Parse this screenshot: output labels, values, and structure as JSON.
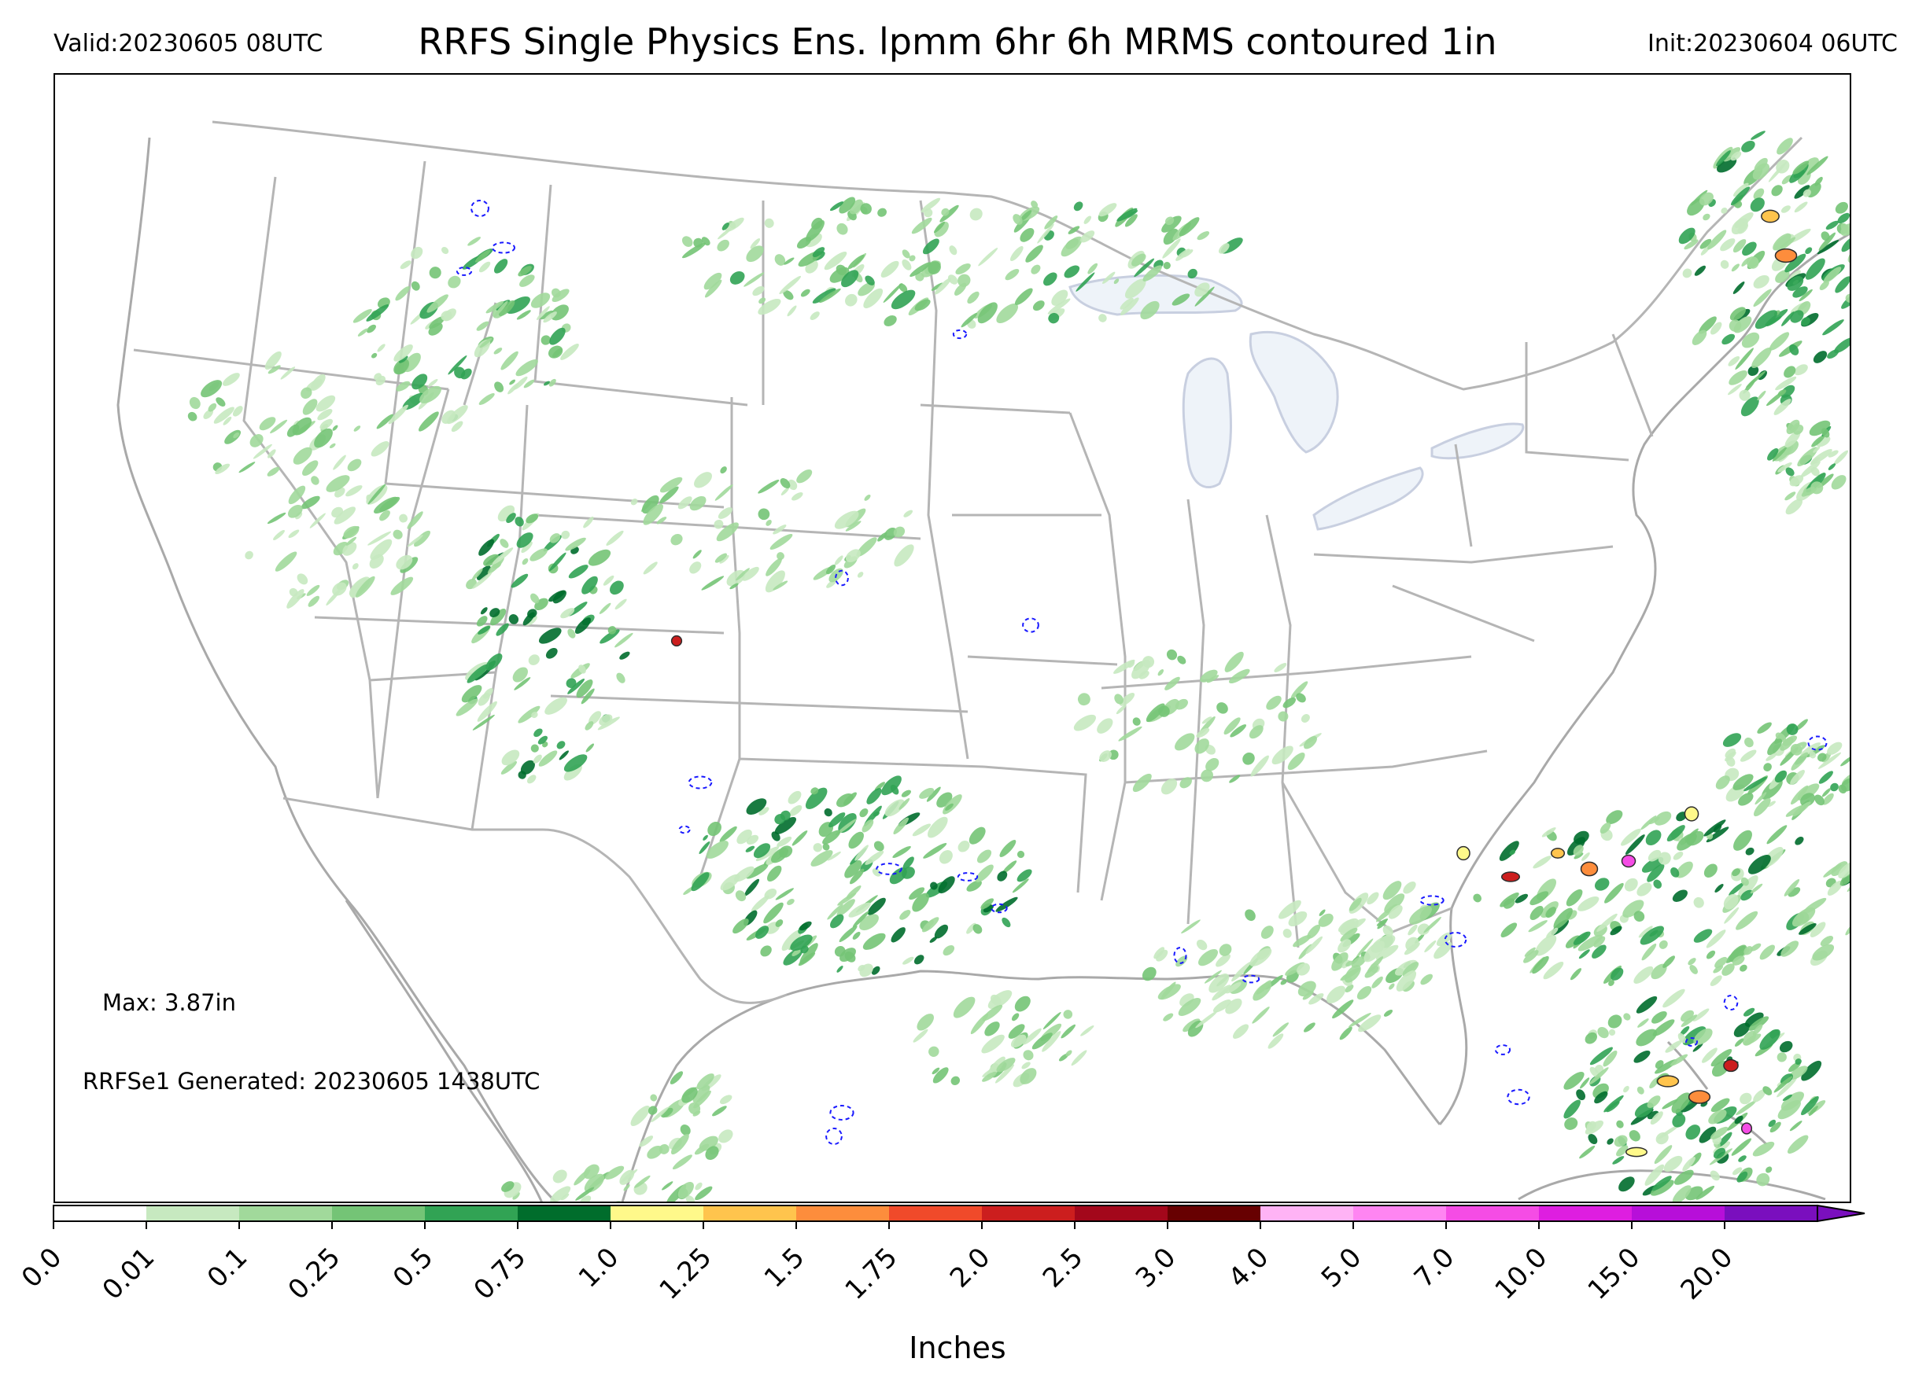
{
  "header": {
    "valid": "Valid:20230605 08UTC",
    "title": "RRFS Single Physics Ens. lpmm 6hr 6h MRMS contoured 1in",
    "init": "Init:20230604 06UTC"
  },
  "annotations": {
    "max": "Max: 3.87in",
    "generated": "RRFSe1 Generated: 20230605 1438UTC"
  },
  "colorbar": {
    "units": "Inches",
    "ticks": [
      "0.0",
      "0.01",
      "0.1",
      "0.25",
      "0.5",
      "0.75",
      "1.0",
      "1.25",
      "1.5",
      "1.75",
      "2.0",
      "2.5",
      "3.0",
      "4.0",
      "5.0",
      "7.0",
      "10.0",
      "15.0",
      "20.0"
    ],
    "colors": [
      "#ffffff",
      "#c7e9c0",
      "#a1d99b",
      "#74c476",
      "#31a354",
      "#006d2c",
      "#fff98a",
      "#ffc44d",
      "#fd8d3c",
      "#f04a2a",
      "#cc1e1e",
      "#a3071b",
      "#670001",
      "#ffb3f5",
      "#ff85f2",
      "#f54ce5",
      "#de1ee0",
      "#b70fd9",
      "#7a0fbe"
    ],
    "extend_color": "#7a0fbe"
  },
  "map": {
    "land_color": "#ffffff",
    "lake_color": "#eef3f9",
    "border_color": "#b5b5b5",
    "coast_color": "#a9a9a9",
    "precip_colors": [
      "#c7e9c0",
      "#a1d99b",
      "#74c476",
      "#31a354",
      "#006d2c"
    ],
    "heavy_colors": [
      "#fff98a",
      "#ffc44d",
      "#fd8d3c",
      "#cc1e1e",
      "#f54ce5"
    ],
    "mrms_contour_color": "#1a1aff"
  }
}
